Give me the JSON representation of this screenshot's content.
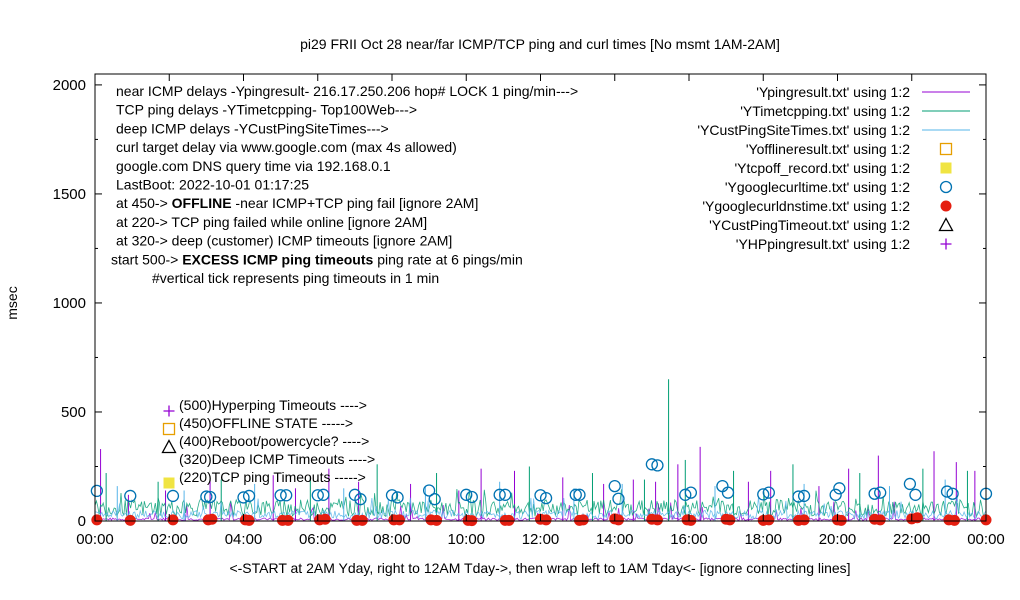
{
  "chart_data": {
    "type": "line",
    "title": "pi29 FRII Oct 28  near/far ICMP/TCP ping and curl times [No msmt 1AM-2AM]",
    "xlabel": "<-START at 2AM Yday, right to 12AM Tday->, then wrap left to 1AM Tday<- [ignore connecting lines]",
    "ylabel": "msec",
    "xlim": [
      0,
      24
    ],
    "ylim": [
      0,
      2050
    ],
    "x_ticks": [
      "00:00",
      "02:00",
      "04:00",
      "06:00",
      "08:00",
      "10:00",
      "12:00",
      "14:00",
      "16:00",
      "18:00",
      "20:00",
      "22:00",
      "00:00"
    ],
    "y_ticks": [
      0,
      500,
      1000,
      1500,
      2000
    ],
    "grid": false,
    "legend_position": "top-right",
    "annotations": [
      {
        "text": "near ICMP delays -Ypingresult- 216.17.250.206 hop# LOCK 1 ping/min--->"
      },
      {
        "text": "TCP ping delays -YTimetcpping- Top100Web--->"
      },
      {
        "text": "deep ICMP delays -YCustPingSiteTimes--->"
      },
      {
        "text": "curl target delay via www.google.com (max 4s allowed)"
      },
      {
        "text": "google.com DNS query time via 192.168.0.1"
      },
      {
        "text": "LastBoot: 2022-10-01 01:17:25"
      },
      {
        "pre": "at 450-> ",
        "bold": "OFFLINE",
        "post": " -near ICMP+TCP ping fail [ignore 2AM]"
      },
      {
        "text": "at 220-> TCP ping failed while online [ignore 2AM]"
      },
      {
        "text": "at 320-> deep (customer) ICMP timeouts [ignore 2AM]"
      },
      {
        "pre": "start 500-> ",
        "bold": "EXCESS ICMP ping timeouts",
        "post": " ping rate at 6 pings/min"
      },
      {
        "text": "#vertical tick represents ping timeouts in 1 min"
      }
    ],
    "markers_legend": [
      {
        "label": "(500)Hyperping Timeouts ---->",
        "marker": "plus",
        "color": "#9400d3"
      },
      {
        "label": "(450)OFFLINE STATE ----->",
        "marker": "open-square",
        "color": "#e69f00"
      },
      {
        "label": "(400)Reboot/powercycle? ---->",
        "marker": "open-triangle",
        "color": "#000000"
      },
      {
        "label": "(320)Deep ICMP Timeouts ---->",
        "marker": "none",
        "color": "#000000"
      },
      {
        "label": "(220)TCP ping Timeouts ----->",
        "marker": "filled-square",
        "color": "#f0e442"
      }
    ],
    "series": [
      {
        "name": "'Ypingresult.txt' using 1:2",
        "style": "line",
        "color": "#9400d3",
        "baseline": 10,
        "spikes": [
          [
            0.15,
            330
          ],
          [
            0.9,
            120
          ],
          [
            1.9,
            140
          ],
          [
            3.1,
            190
          ],
          [
            4.8,
            210
          ],
          [
            5.4,
            150
          ],
          [
            6.3,
            240
          ],
          [
            7.1,
            180
          ],
          [
            8.5,
            170
          ],
          [
            9.8,
            140
          ],
          [
            10.4,
            240
          ],
          [
            11.3,
            230
          ],
          [
            12.6,
            200
          ],
          [
            13.7,
            170
          ],
          [
            14.5,
            190
          ],
          [
            15.1,
            180
          ],
          [
            15.7,
            260
          ],
          [
            16.3,
            340
          ],
          [
            17.6,
            180
          ],
          [
            18.2,
            230
          ],
          [
            19.5,
            160
          ],
          [
            20.3,
            240
          ],
          [
            21.1,
            300
          ],
          [
            22.6,
            320
          ],
          [
            23.2,
            270
          ],
          [
            23.7,
            230
          ]
        ]
      },
      {
        "name": "'YTimetcpping.txt' using 1:2",
        "style": "line",
        "color": "#009e73",
        "baseline": 70,
        "spikes": [
          [
            0.3,
            220
          ],
          [
            1.7,
            180
          ],
          [
            3.4,
            190
          ],
          [
            5.8,
            200
          ],
          [
            7.6,
            260
          ],
          [
            9.2,
            220
          ],
          [
            11.7,
            250
          ],
          [
            13.4,
            220
          ],
          [
            14.8,
            190
          ],
          [
            15.45,
            650
          ],
          [
            15.9,
            280
          ],
          [
            17.2,
            230
          ],
          [
            18.8,
            260
          ],
          [
            20.6,
            220
          ],
          [
            22.3,
            240
          ],
          [
            23.5,
            230
          ]
        ]
      },
      {
        "name": "'YCustPingSiteTimes.txt' using 1:2",
        "style": "line",
        "color": "#56b4e9",
        "baseline": 35,
        "spikes": [
          [
            0.6,
            160
          ],
          [
            2.4,
            140
          ],
          [
            4.3,
            170
          ],
          [
            6.7,
            150
          ],
          [
            8.9,
            160
          ],
          [
            10.9,
            180
          ],
          [
            12.9,
            150
          ],
          [
            14.2,
            170
          ],
          [
            16.7,
            160
          ],
          [
            19.1,
            170
          ],
          [
            21.4,
            160
          ],
          [
            22.9,
            190
          ]
        ]
      },
      {
        "name": "'Yofflineresult.txt' using 1:2",
        "style": "open-square",
        "color": "#e69f00",
        "points": []
      },
      {
        "name": "'Ytcpoff_record.txt' using 1:2",
        "style": "filled-square",
        "color": "#f0e442",
        "points": []
      },
      {
        "name": "'Ygooglecurltime.txt' using 1:2",
        "style": "open-circle",
        "color": "#0072b2",
        "points": [
          [
            0.05,
            138
          ],
          [
            0.95,
            115
          ],
          [
            2.1,
            115
          ],
          [
            3.0,
            112
          ],
          [
            3.1,
            110
          ],
          [
            4.0,
            108
          ],
          [
            4.15,
            115
          ],
          [
            5.0,
            118
          ],
          [
            5.15,
            118
          ],
          [
            6.0,
            118
          ],
          [
            6.15,
            120
          ],
          [
            7.0,
            120
          ],
          [
            7.15,
            100
          ],
          [
            8.0,
            118
          ],
          [
            8.15,
            108
          ],
          [
            9.0,
            140
          ],
          [
            9.15,
            100
          ],
          [
            10.0,
            120
          ],
          [
            10.15,
            110
          ],
          [
            10.9,
            120
          ],
          [
            11.05,
            120
          ],
          [
            12.0,
            118
          ],
          [
            12.15,
            105
          ],
          [
            12.95,
            120
          ],
          [
            13.05,
            120
          ],
          [
            14.0,
            160
          ],
          [
            14.1,
            102
          ],
          [
            15.0,
            260
          ],
          [
            15.15,
            255
          ],
          [
            15.9,
            120
          ],
          [
            16.05,
            130
          ],
          [
            16.9,
            160
          ],
          [
            17.05,
            130
          ],
          [
            18.0,
            122
          ],
          [
            18.15,
            130
          ],
          [
            18.95,
            112
          ],
          [
            19.1,
            115
          ],
          [
            19.95,
            120
          ],
          [
            20.05,
            150
          ],
          [
            21.0,
            125
          ],
          [
            21.15,
            130
          ],
          [
            21.95,
            170
          ],
          [
            22.1,
            120
          ],
          [
            22.95,
            135
          ],
          [
            23.1,
            125
          ],
          [
            24.0,
            125
          ]
        ]
      },
      {
        "name": "'Ygooglecurldnstime.txt' using 1:2",
        "style": "filled-circle",
        "color": "#e51e10",
        "points": [
          [
            0.05,
            5
          ],
          [
            0.95,
            3
          ],
          [
            2.1,
            5
          ],
          [
            3.05,
            5
          ],
          [
            3.15,
            8
          ],
          [
            4.05,
            5
          ],
          [
            4.15,
            3
          ],
          [
            5.05,
            3
          ],
          [
            5.2,
            3
          ],
          [
            6.05,
            5
          ],
          [
            6.2,
            8
          ],
          [
            7.05,
            3
          ],
          [
            7.2,
            3
          ],
          [
            8.05,
            5
          ],
          [
            8.2,
            5
          ],
          [
            9.05,
            5
          ],
          [
            9.2,
            3
          ],
          [
            10.05,
            3
          ],
          [
            10.15,
            2
          ],
          [
            11.05,
            3
          ],
          [
            11.15,
            3
          ],
          [
            12.0,
            8
          ],
          [
            12.15,
            5
          ],
          [
            13.05,
            3
          ],
          [
            13.15,
            5
          ],
          [
            14.0,
            10
          ],
          [
            14.1,
            5
          ],
          [
            15.0,
            8
          ],
          [
            15.15,
            5
          ],
          [
            15.95,
            5
          ],
          [
            16.05,
            3
          ],
          [
            17.0,
            8
          ],
          [
            17.1,
            5
          ],
          [
            18.0,
            3
          ],
          [
            18.15,
            5
          ],
          [
            18.95,
            3
          ],
          [
            19.1,
            5
          ],
          [
            20.0,
            5
          ],
          [
            20.1,
            3
          ],
          [
            21.0,
            8
          ],
          [
            21.15,
            5
          ],
          [
            22.0,
            10
          ],
          [
            22.15,
            15
          ],
          [
            23.0,
            5
          ],
          [
            23.15,
            3
          ],
          [
            24.0,
            5
          ]
        ]
      },
      {
        "name": "'YCustPingTimeout.txt' using 1:2",
        "style": "open-triangle",
        "color": "#000000",
        "points": []
      },
      {
        "name": "'YHPpingresult.txt' using 1:2",
        "style": "plus",
        "color": "#9400d3",
        "points": []
      }
    ]
  }
}
